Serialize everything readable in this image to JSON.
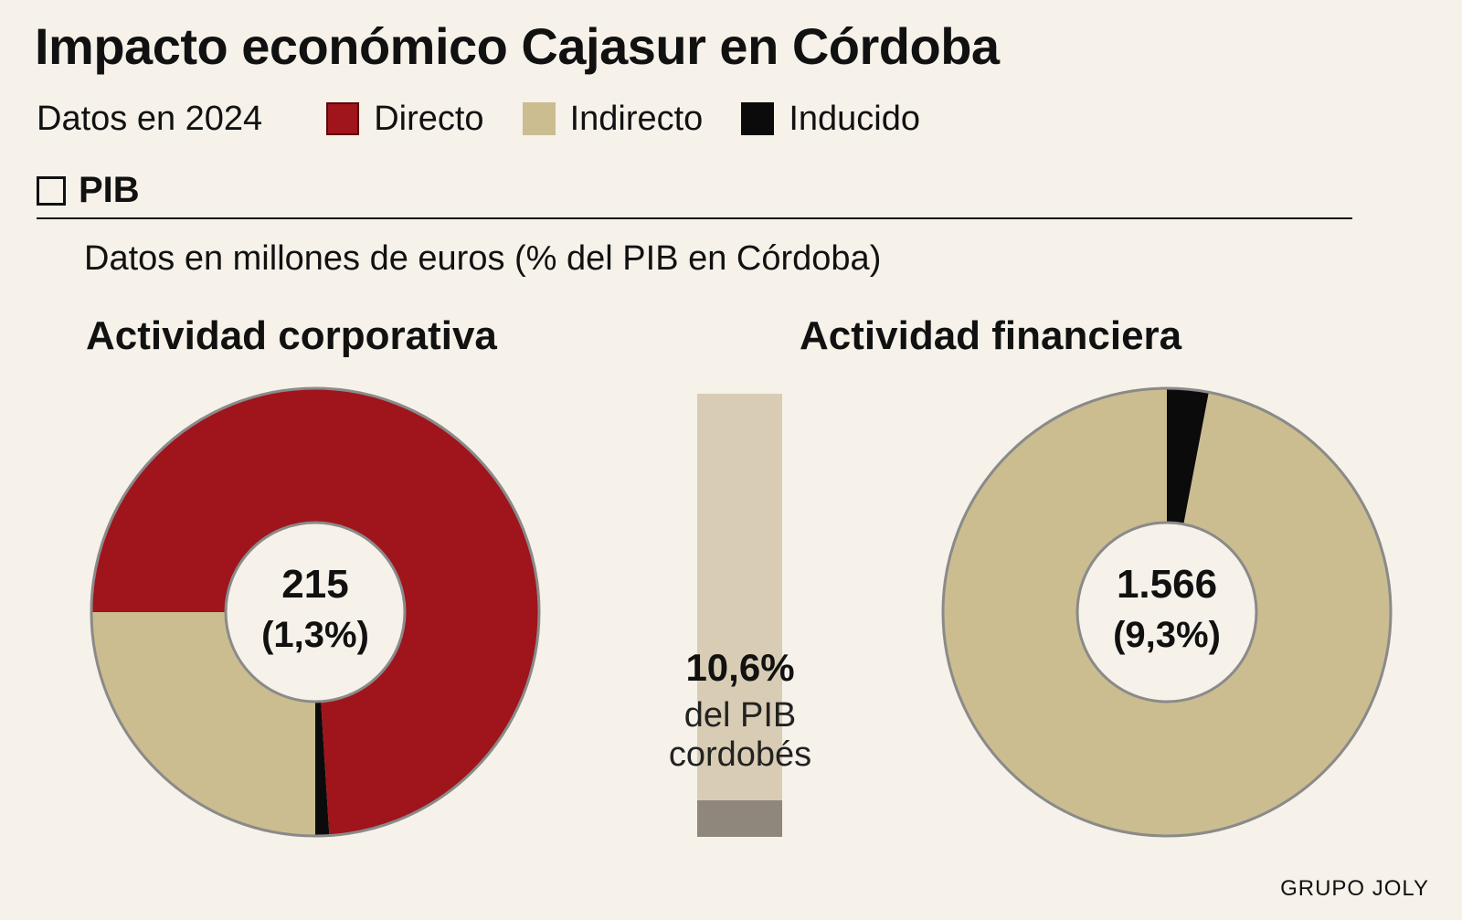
{
  "title": "Impacto económico Cajasur en Córdoba",
  "subtitle": "Datos en 2024",
  "legend": [
    {
      "label": "Directo",
      "color": "#a0141b"
    },
    {
      "label": "Indirecto",
      "color": "#cbbd90"
    },
    {
      "label": "Inducido",
      "color": "#0b0b0b"
    }
  ],
  "section_label": "PIB",
  "units_note": "Datos en millones de euros (% del PIB en Córdoba)",
  "credit": "GRUPO JOLY",
  "colors": {
    "background": "#f6f1e9",
    "directo": "#a0141b",
    "indirecto": "#cbbd90",
    "inducido": "#0b0b0b",
    "bar_total": "#d8cdb4",
    "bar_fill": "#8f877b",
    "ring": "#8a8a8a"
  },
  "chart_data": [
    {
      "type": "pie",
      "title": "Actividad corporativa",
      "center_value": "215",
      "center_pct": "(1,3%)",
      "slices": [
        {
          "name": "Directo",
          "value": 74
        },
        {
          "name": "Inducido",
          "value": 1
        },
        {
          "name": "Indirecto",
          "value": 25
        }
      ]
    },
    {
      "type": "bar",
      "label_value": "10,6%",
      "label_line1": "del PIB",
      "label_line2": "cordobés",
      "value_pct": 10.6,
      "ylim": [
        0,
        100
      ]
    },
    {
      "type": "pie",
      "title": "Actividad financiera",
      "center_value": "1.566",
      "center_pct": "(9,3%)",
      "slices": [
        {
          "name": "Inducido",
          "value": 3
        },
        {
          "name": "Indirecto",
          "value": 97
        }
      ]
    }
  ]
}
